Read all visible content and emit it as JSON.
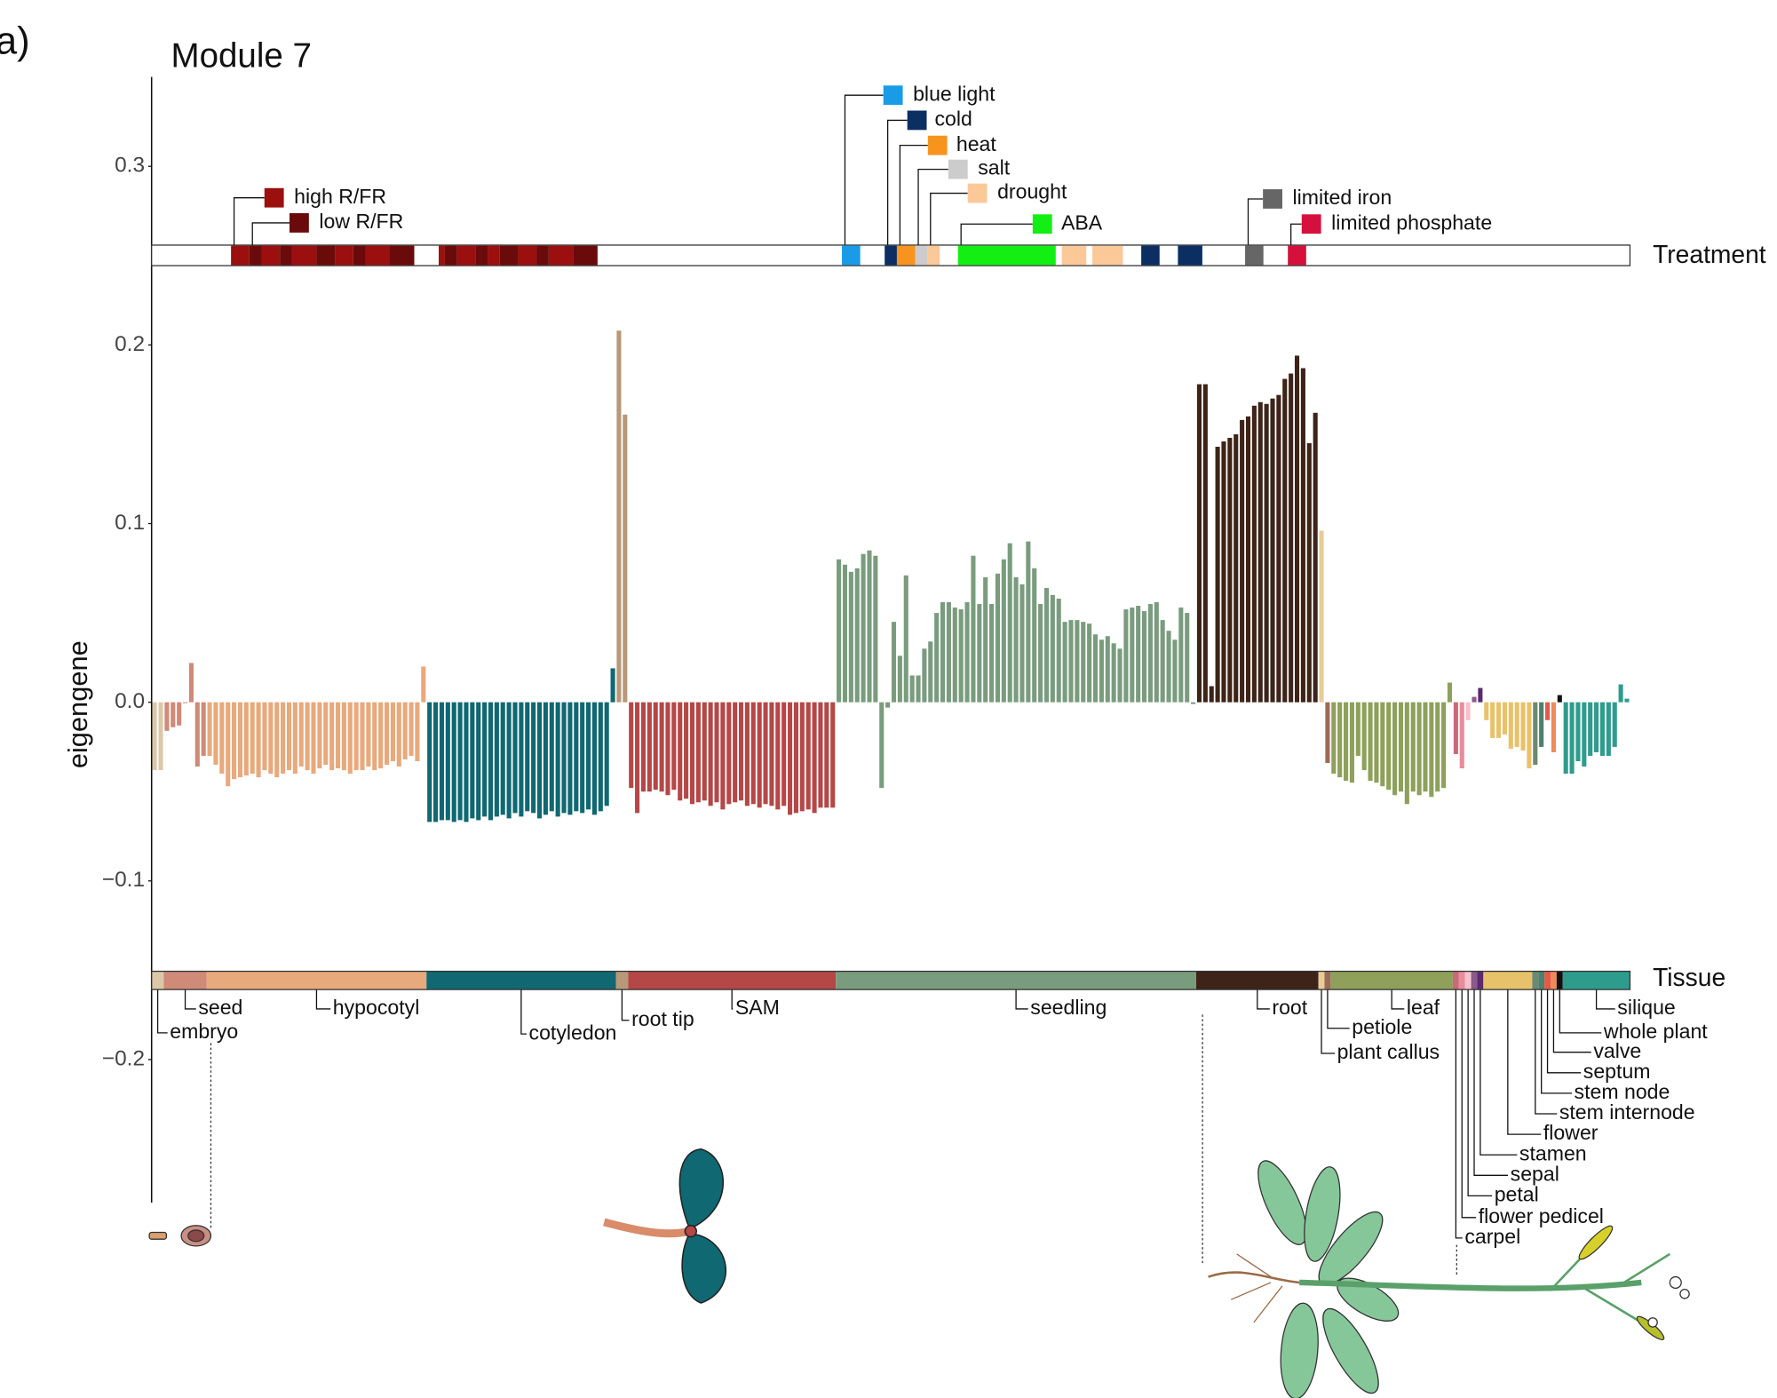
{
  "panel_label": "a)",
  "chart_data": {
    "type": "bar",
    "title": "Module 7",
    "y_label": "eigengene",
    "ylim": [
      -0.28,
      0.35
    ],
    "yticks": [
      {
        "value": -0.2,
        "label": "−0.2"
      },
      {
        "value": -0.1,
        "label": "−0.1"
      },
      {
        "value": 0,
        "label": "0.0"
      },
      0.1,
      0.2,
      0.3
    ],
    "treatment_label": "Treatment",
    "tissue_label": "Tissue",
    "series": [
      {
        "name": "embryo",
        "color": "#dcc7a8",
        "values": [
          -0.038,
          -0.038
        ]
      },
      {
        "name": "seed",
        "color": "#cf8a78",
        "values": [
          -0.016,
          -0.014,
          -0.013,
          0.0,
          0.022,
          -0.036,
          -0.03
        ]
      },
      {
        "name": "hypocotyl",
        "color": "#e8a97c",
        "values": [
          -0.03,
          -0.035,
          -0.04,
          -0.047,
          -0.043,
          -0.042,
          -0.041,
          -0.04,
          -0.042,
          -0.038,
          -0.04,
          -0.042,
          -0.04,
          -0.038,
          -0.04,
          -0.036,
          -0.038,
          -0.04,
          -0.037,
          -0.035,
          -0.038,
          -0.037,
          -0.038,
          -0.04,
          -0.038,
          -0.038,
          -0.036,
          -0.038,
          -0.037,
          -0.035,
          -0.033,
          -0.036,
          -0.032,
          -0.03,
          -0.033,
          0.02
        ]
      },
      {
        "name": "cotyledon",
        "color": "#0f6872",
        "values": [
          -0.067,
          -0.067,
          -0.066,
          -0.066,
          -0.067,
          -0.066,
          -0.067,
          -0.065,
          -0.066,
          -0.064,
          -0.066,
          -0.064,
          -0.063,
          -0.065,
          -0.062,
          -0.064,
          -0.061,
          -0.062,
          -0.065,
          -0.063,
          -0.061,
          -0.064,
          -0.062,
          -0.063,
          -0.061,
          -0.062,
          -0.06,
          -0.063,
          -0.061,
          -0.058,
          0.019
        ]
      },
      {
        "name": "root tip",
        "color": "#b89878",
        "values": [
          0.208,
          0.161
        ]
      },
      {
        "name": "SAM",
        "color": "#b54747",
        "values": [
          -0.048,
          -0.062,
          -0.05,
          -0.05,
          -0.049,
          -0.05,
          -0.052,
          -0.049,
          -0.055,
          -0.054,
          -0.057,
          -0.056,
          -0.055,
          -0.058,
          -0.056,
          -0.06,
          -0.057,
          -0.056,
          -0.055,
          -0.058,
          -0.057,
          -0.059,
          -0.057,
          -0.058,
          -0.06,
          -0.058,
          -0.063,
          -0.062,
          -0.061,
          -0.06,
          -0.062,
          -0.059,
          -0.059,
          -0.059
        ]
      },
      {
        "name": "seedling",
        "color": "#7a9c7e",
        "values": [
          0.08,
          0.077,
          0.073,
          0.075,
          0.083,
          0.085,
          0.082,
          -0.048,
          -0.003,
          0.045,
          0.026,
          0.071,
          0.015,
          0.015,
          0.03,
          0.034,
          0.05,
          0.056,
          0.056,
          0.053,
          0.052,
          0.056,
          0.082,
          0.055,
          0.07,
          0.055,
          0.072,
          0.08,
          0.089,
          0.07,
          0.066,
          0.09,
          0.075,
          0.055,
          0.064,
          0.06,
          0.058,
          0.045,
          0.046,
          0.046,
          0.045,
          0.044,
          0.038,
          0.035,
          0.037,
          0.033,
          0.03,
          0.052,
          0.053,
          0.054,
          0.051,
          0.055,
          0.056,
          0.046,
          0.04,
          0.035,
          0.053,
          0.05,
          -0.001
        ]
      },
      {
        "name": "root",
        "color": "#3d2318",
        "values": [
          0.178,
          0.178,
          0.009,
          0.143,
          0.146,
          0.148,
          0.15,
          0.158,
          0.16,
          0.166,
          0.168,
          0.167,
          0.17,
          0.172,
          0.181,
          0.184,
          0.194,
          0.187,
          0.145,
          0.162
        ]
      },
      {
        "name": "plant callus",
        "color": "#e7cc95",
        "values": [
          0.096
        ]
      },
      {
        "name": "petiole",
        "color": "#9c6b55",
        "values": [
          -0.034
        ]
      },
      {
        "name": "leaf",
        "color": "#8ea05a",
        "values": [
          -0.04,
          -0.042,
          -0.044,
          -0.045,
          -0.03,
          -0.038,
          -0.044,
          -0.045,
          -0.047,
          -0.049,
          -0.052,
          -0.05,
          -0.057,
          -0.05,
          -0.052,
          -0.05,
          -0.053,
          -0.05,
          -0.048,
          0.011
        ]
      },
      {
        "name": "carpel",
        "color": "#c96a78",
        "values": [
          -0.029
        ]
      },
      {
        "name": "flower pedicel",
        "color": "#e88c9c",
        "values": [
          -0.037
        ]
      },
      {
        "name": "petal",
        "color": "#f5c1cc",
        "values": [
          -0.01
        ]
      },
      {
        "name": "sepal",
        "color": "#8a5a8a",
        "values": [
          0.003
        ]
      },
      {
        "name": "stamen",
        "color": "#5b2a6e",
        "values": [
          0.008
        ]
      },
      {
        "name": "flower",
        "color": "#e8c26a",
        "values": [
          -0.01,
          -0.02,
          -0.02,
          -0.018,
          -0.026,
          -0.025,
          -0.027,
          -0.037
        ]
      },
      {
        "name": "stem internode",
        "color": "#6b8a6f",
        "values": [
          -0.035
        ]
      },
      {
        "name": "stem node",
        "color": "#4f7f6d",
        "values": [
          -0.025
        ]
      },
      {
        "name": "septum",
        "color": "#e35a4a",
        "values": [
          -0.01
        ]
      },
      {
        "name": "valve",
        "color": "#f08a5a",
        "values": [
          -0.028
        ]
      },
      {
        "name": "whole plant",
        "color": "#111111",
        "values": [
          0.004
        ]
      },
      {
        "name": "silique",
        "color": "#2e9c8c",
        "values": [
          -0.04,
          -0.04,
          -0.033,
          -0.036,
          -0.03,
          -0.028,
          -0.03,
          -0.03,
          -0.025,
          0.01,
          0.002
        ]
      }
    ],
    "treatments": [
      {
        "name": "high R/FR",
        "color": "#9b0f0f",
        "samples": [
          [
            13,
            16
          ],
          [
            18,
            21
          ],
          [
            23,
            27
          ],
          [
            30,
            33
          ],
          [
            35,
            39
          ],
          [
            47,
            48
          ],
          [
            50,
            53
          ],
          [
            55,
            57
          ],
          [
            60,
            63
          ],
          [
            65,
            69
          ]
        ]
      },
      {
        "name": "low R/FR",
        "color": "#6b0a0a",
        "samples": [
          [
            16,
            18
          ],
          [
            21,
            23
          ],
          [
            27,
            30
          ],
          [
            33,
            35
          ],
          [
            39,
            43
          ],
          [
            48,
            50
          ],
          [
            53,
            55
          ],
          [
            57,
            60
          ],
          [
            63,
            65
          ],
          [
            69,
            73
          ]
        ]
      },
      {
        "name": "blue light",
        "color": "#1a9be8",
        "samples": [
          [
            113,
            116
          ]
        ]
      },
      {
        "name": "cold",
        "color": "#0b2f63",
        "samples": [
          [
            120,
            122
          ],
          [
            162,
            165
          ],
          [
            168,
            172
          ]
        ]
      },
      {
        "name": "heat",
        "color": "#f7941d",
        "samples": [
          [
            122,
            125
          ]
        ]
      },
      {
        "name": "salt",
        "color": "#cccccc",
        "samples": [
          [
            125,
            127
          ]
        ]
      },
      {
        "name": "drought",
        "color": "#fbc898",
        "samples": [
          [
            127,
            129
          ],
          [
            149,
            153
          ],
          [
            154,
            159
          ]
        ]
      },
      {
        "name": "ABA",
        "color": "#13ee13",
        "samples": [
          [
            132,
            148
          ]
        ]
      },
      {
        "name": "limited iron",
        "color": "#666666",
        "samples": [
          [
            179,
            182
          ]
        ]
      },
      {
        "name": "limited phosphate",
        "color": "#d6103c",
        "samples": [
          [
            186,
            189
          ]
        ]
      }
    ]
  }
}
